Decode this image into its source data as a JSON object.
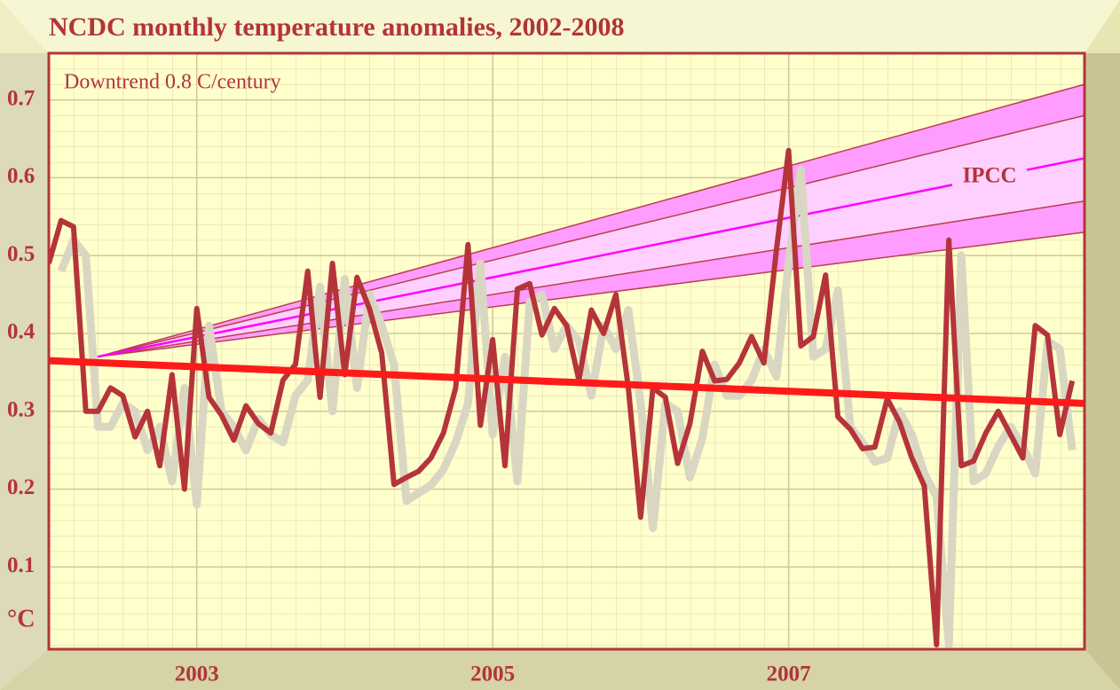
{
  "chart_data": {
    "type": "line",
    "title": "NCDC monthly temperature anomalies, 2002-2008",
    "y_label": "°C",
    "x": [
      2002,
      2002.083,
      2002.167,
      2002.25,
      2002.333,
      2002.417,
      2002.5,
      2002.583,
      2002.667,
      2002.75,
      2002.833,
      2002.917,
      2003,
      2003.083,
      2003.167,
      2003.25,
      2003.333,
      2003.417,
      2003.5,
      2003.583,
      2003.667,
      2003.75,
      2003.833,
      2003.917,
      2004,
      2004.083,
      2004.167,
      2004.25,
      2004.333,
      2004.417,
      2004.5,
      2004.583,
      2004.667,
      2004.75,
      2004.833,
      2004.917,
      2005,
      2005.083,
      2005.167,
      2005.25,
      2005.333,
      2005.417,
      2005.5,
      2005.583,
      2005.667,
      2005.75,
      2005.833,
      2005.917,
      2006,
      2006.083,
      2006.167,
      2006.25,
      2006.333,
      2006.417,
      2006.5,
      2006.583,
      2006.667,
      2006.75,
      2006.833,
      2006.917,
      2007,
      2007.083,
      2007.167,
      2007.25,
      2007.333,
      2007.417,
      2007.5,
      2007.583,
      2007.667,
      2007.75,
      2007.833,
      2007.917,
      2008,
      2008.083,
      2008.167,
      2008.25,
      2008.333,
      2008.417,
      2008.5,
      2008.583,
      2008.667,
      2008.75,
      2008.833,
      2008.917
    ],
    "series": [
      {
        "color": "#d9d7c2",
        "width": 9,
        "values": [
          null,
          0.48,
          0.52,
          0.5,
          0.28,
          0.28,
          0.31,
          0.3,
          0.25,
          0.28,
          0.21,
          0.33,
          0.18,
          0.41,
          0.3,
          0.28,
          0.25,
          0.29,
          0.27,
          0.26,
          0.32,
          0.34,
          0.46,
          0.3,
          0.47,
          0.33,
          0.45,
          0.41,
          0.36,
          0.185,
          0.195,
          0.205,
          0.225,
          0.26,
          0.31,
          0.49,
          0.27,
          0.37,
          0.21,
          0.44,
          0.45,
          0.38,
          0.41,
          0.39,
          0.32,
          0.41,
          0.38,
          0.43,
          0.31,
          0.15,
          0.31,
          0.3,
          0.215,
          0.265,
          0.36,
          0.32,
          0.32,
          0.34,
          0.38,
          0.345,
          0.49,
          0.61,
          0.37,
          0.38,
          0.455,
          0.28,
          0.26,
          0.235,
          0.24,
          0.3,
          0.27,
          0.22,
          0.19,
          0.0,
          0.5,
          0.21,
          0.22,
          0.255,
          0.28,
          0.255,
          0.22,
          0.39,
          0.38,
          0.25
        ]
      },
      {
        "color": "#b5343a",
        "width": 6,
        "values": [
          0.49,
          0.545,
          0.537,
          0.3,
          0.3,
          0.33,
          0.32,
          0.267,
          0.3,
          0.23,
          0.347,
          0.2,
          0.432,
          0.318,
          0.295,
          0.263,
          0.307,
          0.284,
          0.272,
          0.34,
          0.36,
          0.48,
          0.318,
          0.49,
          0.347,
          0.472,
          0.432,
          0.375,
          0.206,
          0.215,
          0.223,
          0.24,
          0.272,
          0.33,
          0.514,
          0.282,
          0.392,
          0.23,
          0.457,
          0.464,
          0.398,
          0.432,
          0.41,
          0.34,
          0.43,
          0.4,
          0.45,
          0.33,
          0.164,
          0.33,
          0.318,
          0.233,
          0.284,
          0.377,
          0.339,
          0.341,
          0.362,
          0.396,
          0.362,
          0.506,
          0.635,
          0.384,
          0.396,
          0.475,
          0.293,
          0.277,
          0.252,
          0.254,
          0.316,
          0.286,
          0.24,
          0.204,
          0.0,
          0.52,
          0.23,
          0.236,
          0.272,
          0.3,
          0.27,
          0.24,
          0.41,
          0.398,
          0.27,
          0.339
        ]
      }
    ],
    "trend": {
      "label": "Downtrend 0.8 C/century",
      "color": "#ff1a1a",
      "x": [
        2002,
        2009
      ],
      "values": [
        0.365,
        0.31
      ]
    },
    "ipcc": {
      "label": "IPCC",
      "x": [
        2002.33,
        2009
      ],
      "upper": [
        0.37,
        0.72
      ],
      "upper_mid": [
        0.37,
        0.68
      ],
      "center": [
        0.37,
        0.625
      ],
      "lower_mid": [
        0.37,
        0.57
      ],
      "lower": [
        0.37,
        0.53
      ],
      "outer_color": "#ff9cff",
      "inner_color": "#ffd0ff",
      "edge_color": "#b8404a",
      "center_color": "#ff00ff"
    },
    "xlim": [
      2002,
      2009
    ],
    "xticks": [
      2003,
      2005,
      2007
    ],
    "ylim": [
      0,
      0.76
    ],
    "yticks": [
      0.1,
      0.2,
      0.3,
      0.4,
      0.5,
      0.6,
      0.7
    ],
    "grid": true
  }
}
